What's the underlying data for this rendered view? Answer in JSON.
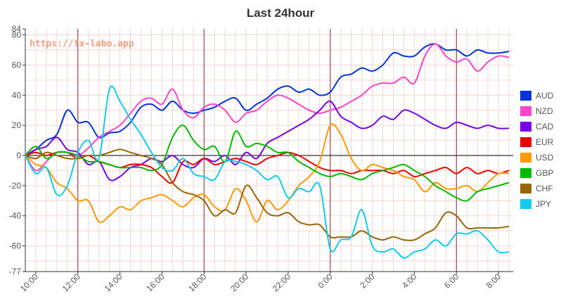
{
  "chart_data": {
    "type": "line",
    "title": "Last 24hour",
    "watermark": "https://fx-labo.app",
    "xlabel": "",
    "ylabel": "",
    "x_range_hours": [
      9.5,
      32.7
    ],
    "x_ticks": [
      {
        "label": "10:00",
        "h": 10
      },
      {
        "label": "12:00",
        "h": 12
      },
      {
        "label": "14:00",
        "h": 14
      },
      {
        "label": "16:00",
        "h": 16
      },
      {
        "label": "18:00",
        "h": 18
      },
      {
        "label": "20:00",
        "h": 20
      },
      {
        "label": "22:00",
        "h": 22
      },
      {
        "label": "0:00",
        "h": 24
      },
      {
        "label": "2:00",
        "h": 26
      },
      {
        "label": "4:00",
        "h": 28
      },
      {
        "label": "6:00",
        "h": 30
      },
      {
        "label": "8:00",
        "h": 32
      }
    ],
    "ylim": [
      -77,
      84
    ],
    "y_ticks": [
      "84",
      "80",
      "60",
      "40",
      "20",
      "0",
      "-20",
      "-40",
      "-60",
      "-77"
    ],
    "session_markers_h": [
      12,
      18,
      24,
      30
    ],
    "grid": true,
    "legend_position": "right",
    "series": [
      {
        "name": "AUD",
        "color": "#0033dd",
        "x": [
          9.5,
          10,
          10.5,
          11,
          11.5,
          12,
          12.5,
          13,
          13.5,
          14,
          14.5,
          15,
          15.5,
          16,
          16.5,
          17,
          17.5,
          18,
          18.5,
          19,
          19.5,
          20,
          20.5,
          21,
          21.5,
          22,
          22.5,
          23,
          23.5,
          24,
          24.5,
          25,
          25.5,
          26,
          26.5,
          27,
          27.5,
          28,
          28.5,
          29,
          29.5,
          30,
          30.5,
          31,
          31.5,
          32,
          32.5
        ],
        "values": [
          0,
          4,
          10,
          14,
          30,
          22,
          22,
          12,
          15,
          16,
          22,
          32,
          34,
          30,
          36,
          30,
          28,
          30,
          32,
          36,
          38,
          30,
          34,
          38,
          44,
          46,
          42,
          44,
          40,
          42,
          52,
          54,
          58,
          56,
          60,
          68,
          66,
          66,
          72,
          74,
          70,
          70,
          66,
          70,
          68,
          68,
          69
        ]
      },
      {
        "name": "NZD",
        "color": "#ff44cc",
        "x": [
          9.5,
          10,
          10.5,
          11,
          11.5,
          12,
          12.5,
          13,
          13.5,
          14,
          14.5,
          15,
          15.5,
          16,
          16.5,
          17,
          17.5,
          18,
          18.5,
          19,
          19.5,
          20,
          20.5,
          21,
          21.5,
          22,
          22.5,
          23,
          23.5,
          24,
          24.5,
          25,
          25.5,
          26,
          26.5,
          27,
          27.5,
          28,
          28.5,
          29,
          29.5,
          30,
          30.5,
          31,
          31.5,
          32,
          32.5
        ],
        "values": [
          0,
          -10,
          -4,
          2,
          2,
          0,
          5,
          12,
          16,
          20,
          28,
          36,
          38,
          34,
          44,
          30,
          25,
          32,
          34,
          30,
          22,
          28,
          30,
          36,
          40,
          38,
          34,
          30,
          28,
          30,
          32,
          36,
          40,
          46,
          48,
          48,
          52,
          48,
          66,
          74,
          66,
          62,
          64,
          56,
          62,
          66,
          65
        ]
      },
      {
        "name": "CAD",
        "color": "#7700ee",
        "x": [
          9.5,
          10,
          10.5,
          11,
          11.5,
          12,
          12.5,
          13,
          13.5,
          14,
          14.5,
          15,
          15.5,
          16,
          16.5,
          17,
          17.5,
          18,
          18.5,
          19,
          19.5,
          20,
          20.5,
          21,
          21.5,
          22,
          22.5,
          23,
          23.5,
          24,
          24.5,
          25,
          25.5,
          26,
          26.5,
          27,
          27.5,
          28,
          28.5,
          29,
          29.5,
          30,
          30.5,
          31,
          31.5,
          32,
          32.5
        ],
        "values": [
          0,
          4,
          6,
          12,
          4,
          2,
          -6,
          -4,
          -16,
          -14,
          -8,
          -6,
          -2,
          -4,
          0,
          -6,
          -8,
          -2,
          -4,
          0,
          -6,
          2,
          -2,
          8,
          12,
          16,
          20,
          24,
          30,
          36,
          26,
          22,
          18,
          20,
          26,
          24,
          30,
          28,
          24,
          20,
          18,
          22,
          20,
          18,
          20,
          18,
          18
        ]
      },
      {
        "name": "EUR",
        "color": "#ee0000",
        "x": [
          9.5,
          10,
          10.5,
          11,
          11.5,
          12,
          12.5,
          13,
          13.5,
          14,
          14.5,
          15,
          15.5,
          16,
          16.5,
          17,
          17.5,
          18,
          18.5,
          19,
          19.5,
          20,
          20.5,
          21,
          21.5,
          22,
          22.5,
          23,
          23.5,
          24,
          24.5,
          25,
          25.5,
          26,
          26.5,
          27,
          27.5,
          28,
          28.5,
          29,
          29.5,
          30,
          30.5,
          31,
          31.5,
          32,
          32.5
        ],
        "values": [
          0,
          2,
          0,
          2,
          2,
          -2,
          0,
          -4,
          -6,
          -8,
          -6,
          -6,
          -8,
          -14,
          -18,
          -4,
          -6,
          -2,
          -6,
          -4,
          -2,
          -4,
          -6,
          -2,
          0,
          2,
          0,
          -4,
          -8,
          -10,
          -10,
          -12,
          -10,
          -10,
          -10,
          -12,
          -10,
          -14,
          -12,
          -10,
          -8,
          -12,
          -8,
          -12,
          -10,
          -12,
          -10
        ]
      },
      {
        "name": "USD",
        "color": "#ff9900",
        "x": [
          9.5,
          10,
          10.5,
          11,
          11.5,
          12,
          12.5,
          13,
          13.5,
          14,
          14.5,
          15,
          15.5,
          16,
          16.5,
          17,
          17.5,
          18,
          18.5,
          19,
          19.5,
          20,
          20.5,
          21,
          21.5,
          22,
          22.5,
          23,
          23.5,
          24,
          24.5,
          25,
          25.5,
          26,
          26.5,
          27,
          27.5,
          28,
          28.5,
          29,
          29.5,
          30,
          30.5,
          31,
          31.5,
          32,
          32.5
        ],
        "values": [
          0,
          -6,
          -8,
          -18,
          -22,
          -30,
          -30,
          -44,
          -40,
          -34,
          -36,
          -30,
          -28,
          -26,
          -30,
          -34,
          -28,
          -26,
          -34,
          -36,
          -22,
          -30,
          -44,
          -30,
          -36,
          -30,
          -20,
          -14,
          -4,
          20,
          14,
          -2,
          -10,
          -6,
          -8,
          -10,
          -14,
          -16,
          -24,
          -18,
          -22,
          -22,
          -20,
          -24,
          -18,
          -12,
          -12
        ]
      },
      {
        "name": "GBP",
        "color": "#00bb00",
        "x": [
          9.5,
          10,
          10.5,
          11,
          11.5,
          12,
          12.5,
          13,
          13.5,
          14,
          14.5,
          15,
          15.5,
          16,
          16.5,
          17,
          17.5,
          18,
          18.5,
          19,
          19.5,
          20,
          20.5,
          21,
          21.5,
          22,
          22.5,
          23,
          23.5,
          24,
          24.5,
          25,
          25.5,
          26,
          26.5,
          27,
          27.5,
          28,
          28.5,
          29,
          29.5,
          30,
          30.5,
          31,
          31.5,
          32,
          32.5
        ],
        "values": [
          0,
          6,
          -2,
          2,
          2,
          0,
          -4,
          -4,
          -6,
          -8,
          -8,
          -8,
          -10,
          -6,
          12,
          20,
          10,
          4,
          6,
          -4,
          16,
          6,
          8,
          6,
          2,
          2,
          -4,
          -8,
          -12,
          -14,
          -12,
          -14,
          -16,
          -12,
          -10,
          -8,
          -6,
          -10,
          -14,
          -20,
          -24,
          -28,
          -30,
          -24,
          -22,
          -20,
          -18
        ]
      },
      {
        "name": "CHF",
        "color": "#996600",
        "x": [
          9.5,
          10,
          10.5,
          11,
          11.5,
          12,
          12.5,
          13,
          13.5,
          14,
          14.5,
          15,
          15.5,
          16,
          16.5,
          17,
          17.5,
          18,
          18.5,
          19,
          19.5,
          20,
          20.5,
          21,
          21.5,
          22,
          22.5,
          23,
          23.5,
          24,
          24.5,
          25,
          25.5,
          26,
          26.5,
          27,
          27.5,
          28,
          28.5,
          29,
          29.5,
          30,
          30.5,
          31,
          31.5,
          32,
          32.5
        ],
        "values": [
          0,
          -2,
          2,
          0,
          -2,
          -2,
          0,
          0,
          2,
          4,
          2,
          0,
          -2,
          -6,
          -18,
          -24,
          -26,
          -30,
          -40,
          -36,
          -38,
          -20,
          -28,
          -38,
          -40,
          -38,
          -44,
          -46,
          -46,
          -54,
          -54,
          -54,
          -50,
          -54,
          -56,
          -54,
          -56,
          -56,
          -52,
          -48,
          -38,
          -40,
          -48,
          -48,
          -48,
          -48,
          -47
        ]
      },
      {
        "name": "JPY",
        "color": "#11ccee",
        "x": [
          9.5,
          10,
          10.5,
          11,
          11.5,
          12,
          12.5,
          13,
          13.5,
          14,
          14.5,
          15,
          15.5,
          16,
          16.5,
          17,
          17.5,
          18,
          18.5,
          19,
          19.5,
          20,
          20.5,
          21,
          21.5,
          22,
          22.5,
          23,
          23.5,
          24,
          24.5,
          25,
          25.5,
          26,
          26.5,
          27,
          27.5,
          28,
          28.5,
          29,
          29.5,
          30,
          30.5,
          31,
          31.5,
          32,
          32.5
        ],
        "values": [
          0,
          -12,
          -8,
          -26,
          -20,
          2,
          10,
          -2,
          44,
          36,
          24,
          14,
          2,
          -8,
          -10,
          -2,
          -12,
          -14,
          -16,
          -4,
          -4,
          -6,
          -10,
          -16,
          -14,
          -28,
          -22,
          -24,
          -20,
          -62,
          -56,
          -54,
          -36,
          -60,
          -64,
          -62,
          -68,
          -64,
          -62,
          -56,
          -60,
          -52,
          -52,
          -50,
          -56,
          -64,
          -64
        ]
      }
    ]
  }
}
